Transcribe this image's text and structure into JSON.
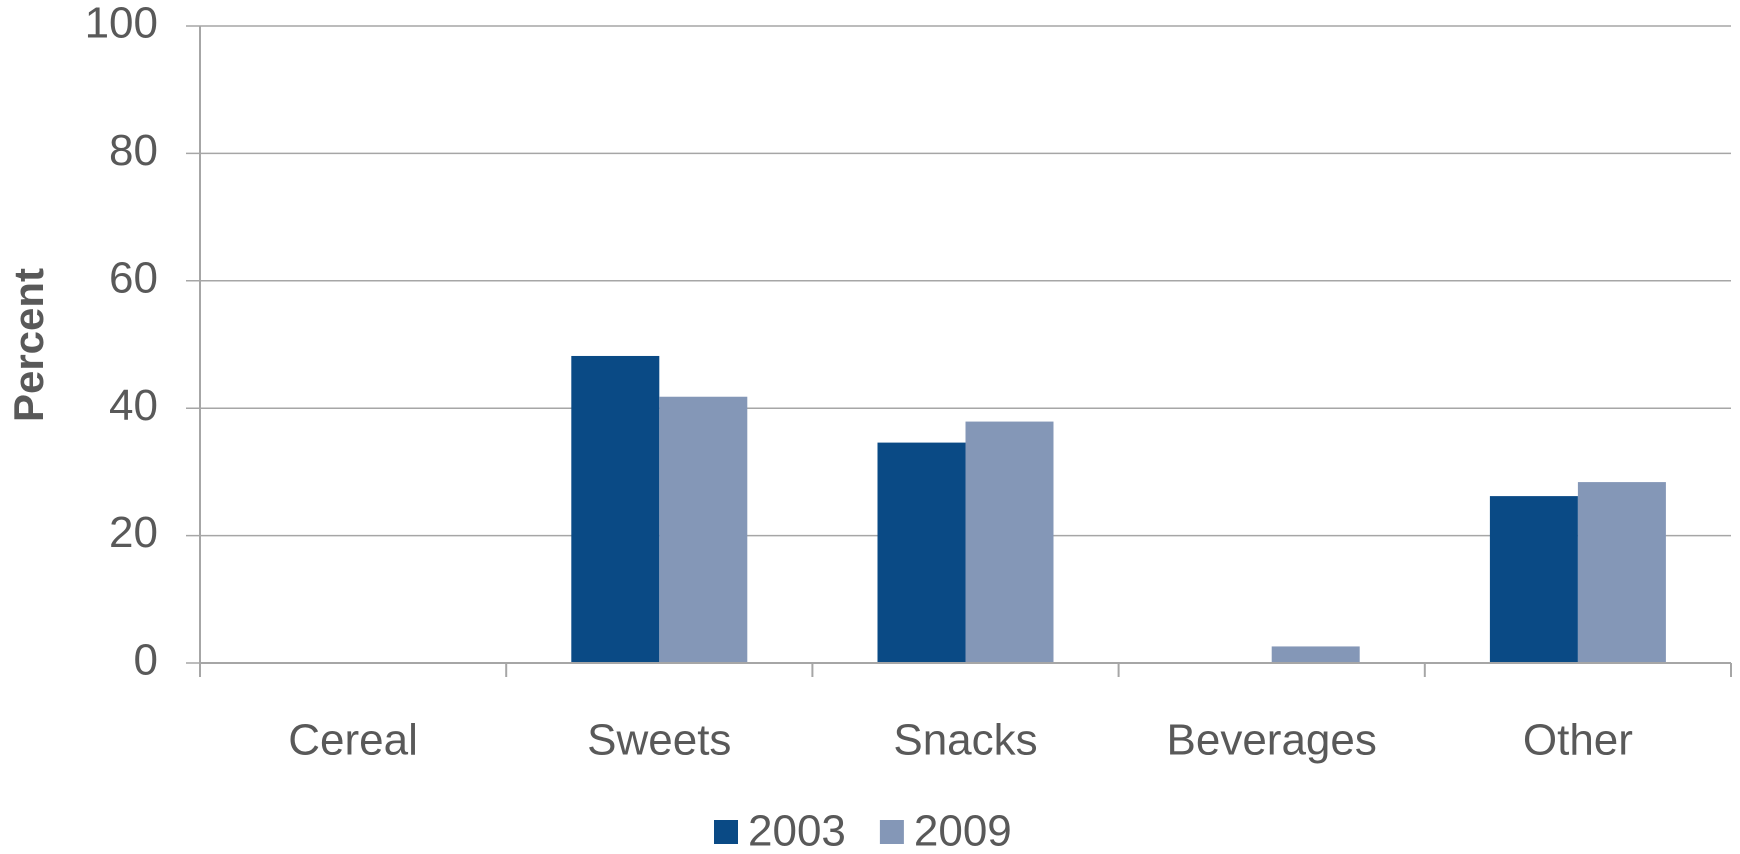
{
  "chart_data": {
    "type": "bar",
    "y_label": "Percent",
    "categories": [
      "Cereal",
      "Sweets",
      "Snacks",
      "Beverages",
      "Other"
    ],
    "series": [
      {
        "name": "2003",
        "color": "#0a4a85",
        "values": [
          null,
          48.2,
          34.6,
          0,
          26.2
        ]
      },
      {
        "name": "2009",
        "color": "#8497b7",
        "values": [
          null,
          41.8,
          37.9,
          2.6,
          28.4
        ]
      }
    ],
    "ylim": [
      0,
      100
    ],
    "yticks": [
      0,
      20,
      40,
      60,
      80,
      100
    ],
    "grid": true
  }
}
